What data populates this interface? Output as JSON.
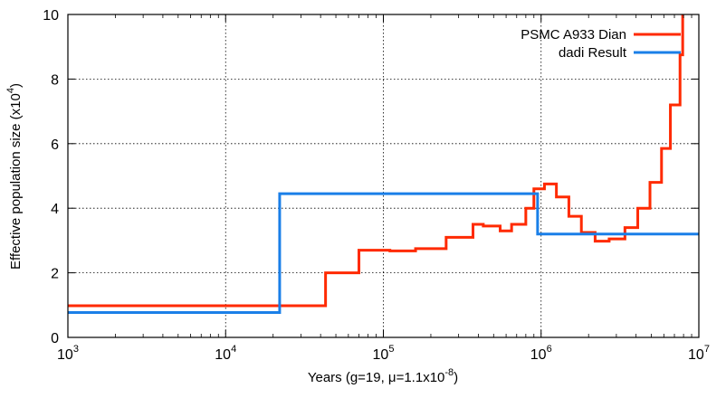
{
  "chart_data": {
    "type": "line",
    "title": "",
    "xlabel": "Years (g=19, μ=1.1x10-8)",
    "xlabel_parts": {
      "pre": "Years (g=19, μ=1.1x10",
      "sup": "-8",
      "post": ")"
    },
    "ylabel": "Effective population size (x104)",
    "ylabel_parts": {
      "pre": "Effective population size (x10",
      "sup": "4",
      "post": ")"
    },
    "x_scale": "log",
    "xlim": [
      1000,
      10000000
    ],
    "ylim": [
      0,
      10
    ],
    "x_ticks": [
      {
        "value": 1000,
        "base": "10",
        "exp": "3"
      },
      {
        "value": 10000,
        "base": "10",
        "exp": "4"
      },
      {
        "value": 100000,
        "base": "10",
        "exp": "5"
      },
      {
        "value": 1000000,
        "base": "10",
        "exp": "6"
      },
      {
        "value": 10000000,
        "base": "10",
        "exp": "7"
      }
    ],
    "y_ticks": [
      0,
      2,
      4,
      6,
      8,
      10
    ],
    "grid": true,
    "legend_position": "top-right",
    "series": [
      {
        "name": "PSMC A933 Dian",
        "color": "#ff2a00",
        "step": true,
        "x": [
          1000,
          43000,
          70000,
          100000,
          110000,
          160000,
          250000,
          370000,
          430000,
          550000,
          650000,
          800000,
          900000,
          1050000,
          1250000,
          1500000,
          1800000,
          2200000,
          2700000,
          3400000,
          4100000,
          4900000,
          5800000,
          6600000,
          7600000,
          7900000
        ],
        "y": [
          0.98,
          2.0,
          2.7,
          2.7,
          2.68,
          2.75,
          3.1,
          3.5,
          3.45,
          3.3,
          3.5,
          4.0,
          4.6,
          4.75,
          4.35,
          3.75,
          3.25,
          2.98,
          3.05,
          3.4,
          4.0,
          4.8,
          5.85,
          7.2,
          8.75,
          10.0
        ]
      },
      {
        "name": "dadi Result",
        "color": "#1a7fe8",
        "step": true,
        "x": [
          1000,
          22000,
          950000,
          10000000
        ],
        "y": [
          0.77,
          4.45,
          3.2,
          3.2
        ]
      }
    ]
  }
}
